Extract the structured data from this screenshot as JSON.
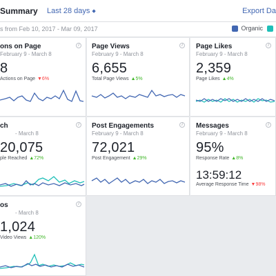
{
  "header": {
    "title": "Summary",
    "range_label": "Last 28 days",
    "export_label": "Export Da"
  },
  "subbar": {
    "dates": "s from Feb 10, 2017 - Mar 09, 2017",
    "legend": [
      {
        "label": "Organic",
        "color": "#4267b2"
      },
      {
        "label": "",
        "color": "#1fbfb8"
      }
    ]
  },
  "colors": {
    "primary_line": "#4267b2",
    "secondary_line": "#1fbfb8",
    "up": "#42b72a",
    "down": "#fa3e3e"
  },
  "cards": [
    {
      "title": "ons on Page",
      "date": "February 9 - March 8",
      "value": "8",
      "sub_label": "Actions on Page",
      "change": "6%",
      "direction": "down"
    },
    {
      "title": "Page Views",
      "date": "February 9 - March 8",
      "value": "6,655",
      "sub_label": "Total Page Views",
      "change": "5%",
      "direction": "up"
    },
    {
      "title": "Page Likes",
      "date": "February 9 - March 8",
      "value": "2,359",
      "sub_label": "Page Likes",
      "change": "4%",
      "direction": "up"
    },
    {
      "title": "ch",
      "date": "- March 8",
      "value": "20,075",
      "sub_label": "ple Reached",
      "change": "72%",
      "direction": "up"
    },
    {
      "title": "Post Engagements",
      "date": "February 9 - March 8",
      "value": "72,021",
      "sub_label": "Post Engagement",
      "change": "29%",
      "direction": "up"
    },
    {
      "title": "Messages",
      "date": "February 9 - March 8",
      "value": "95%",
      "sub_label": "Response Rate",
      "change": "8%",
      "direction": "up",
      "value2": "13:59:12",
      "sub_label2": "Average Response Time",
      "change2": "98%",
      "direction2": "down"
    },
    {
      "title": "os",
      "date": "- March 8",
      "value": "1,024",
      "sub_label": "Video Views",
      "change": "120%",
      "direction": "up"
    }
  ],
  "arrows": {
    "up": "▲",
    "down": "▼"
  }
}
